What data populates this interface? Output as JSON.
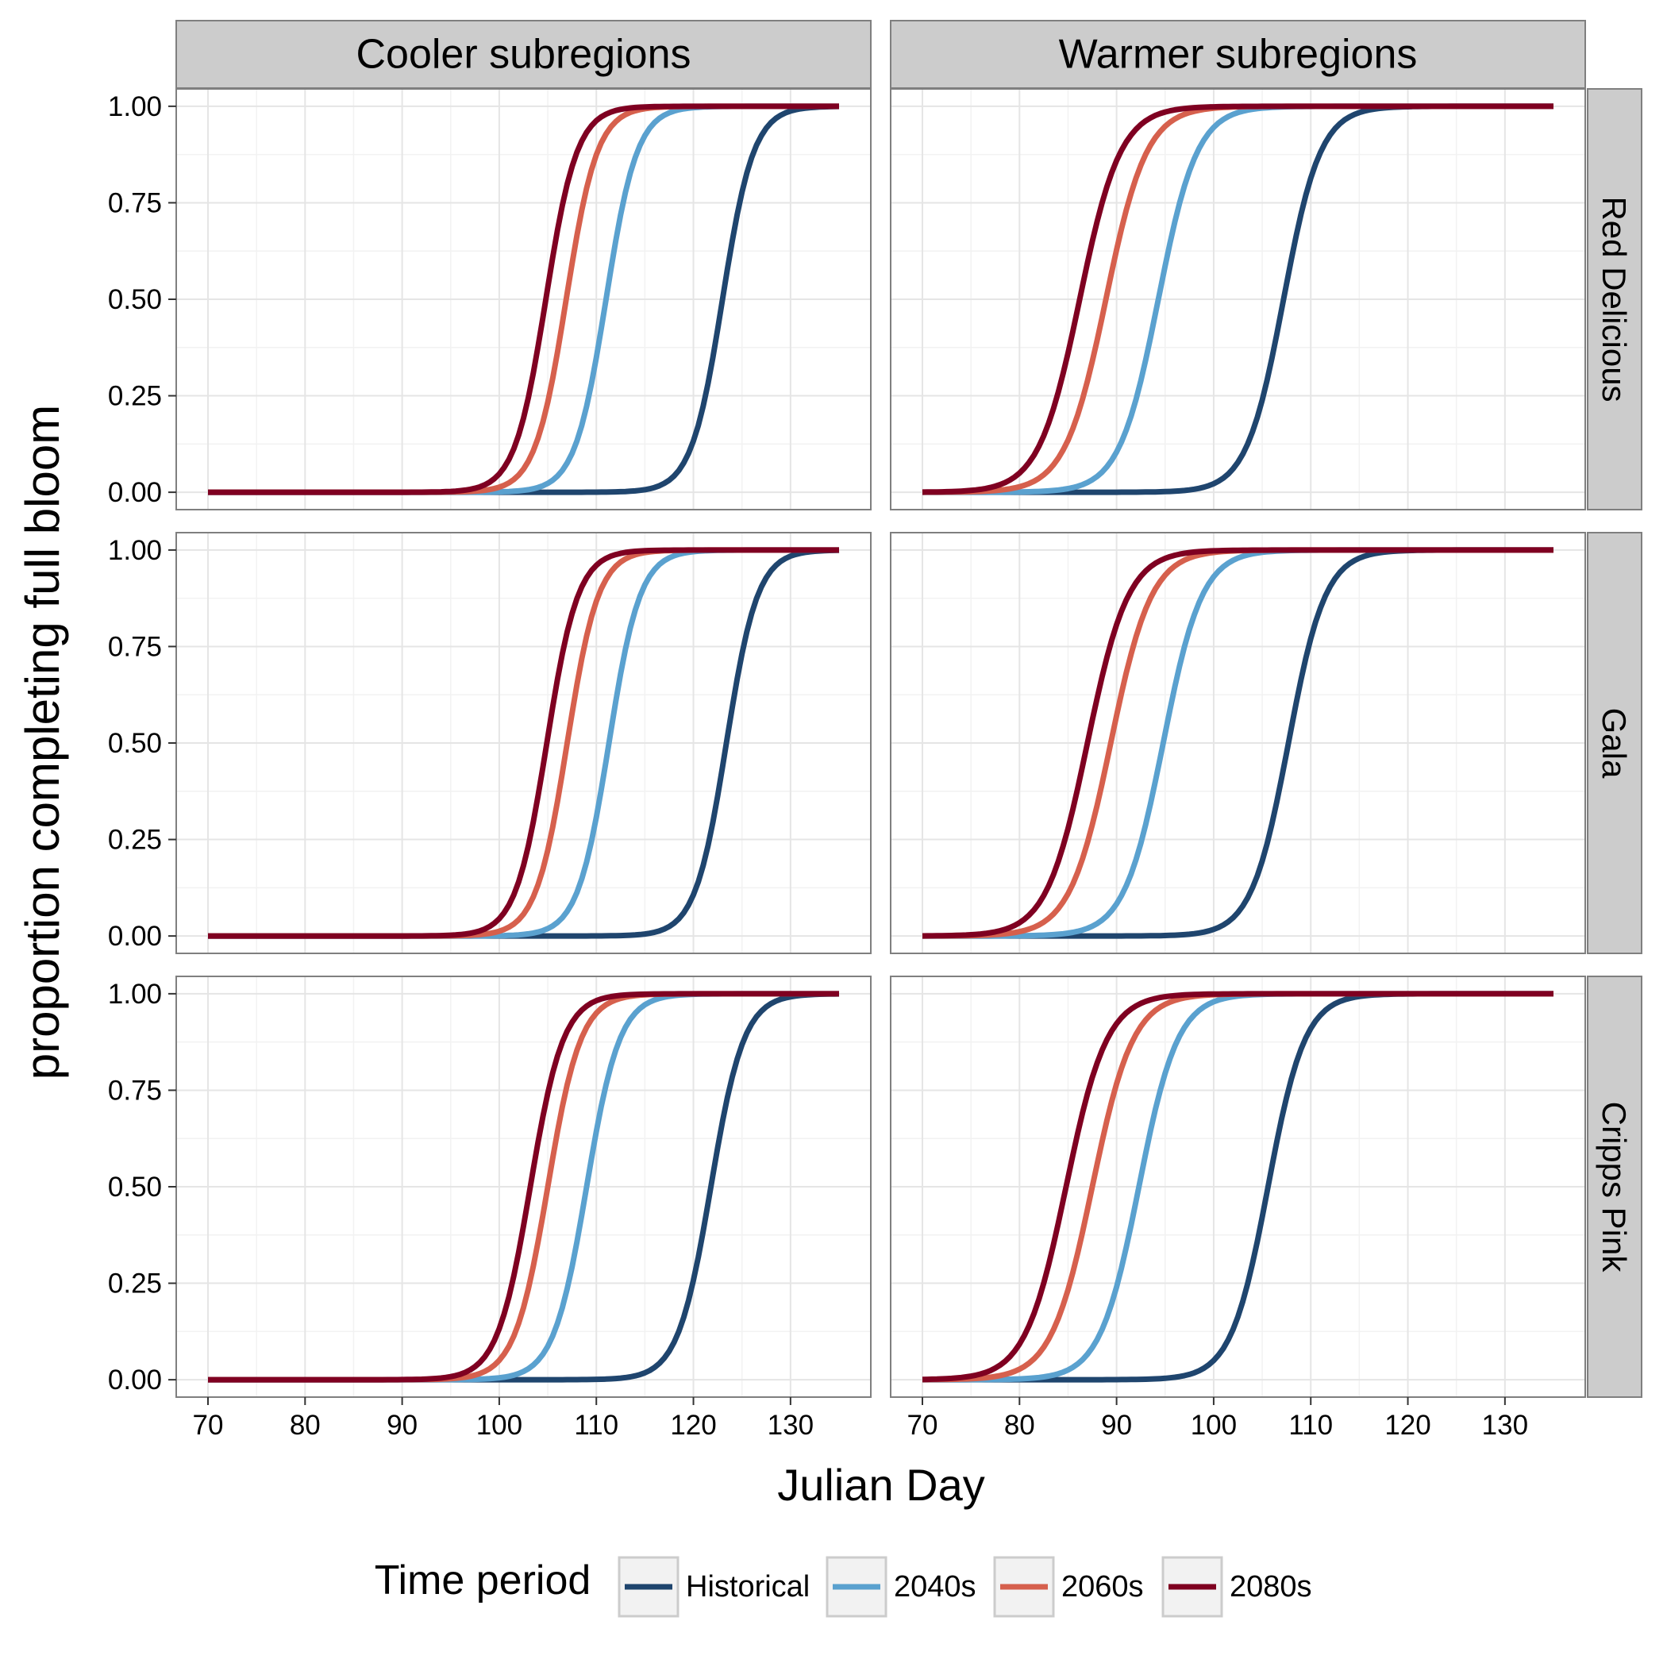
{
  "chart_data": {
    "type": "line",
    "ylabel": "proportion completing full bloom",
    "xlabel": "Julian Day",
    "col_facets": [
      "Cooler subregions",
      "Warmer subregions"
    ],
    "row_facets": [
      "Red Delicious",
      "Gala",
      "Cripps Pink"
    ],
    "xlim": [
      70,
      135
    ],
    "ylim": [
      0,
      1
    ],
    "x_ticks": [
      "70",
      "80",
      "90",
      "100",
      "110",
      "120",
      "130"
    ],
    "x_tick_values": [
      70,
      80,
      90,
      100,
      110,
      120,
      130
    ],
    "y_ticks": [
      "0.00",
      "0.25",
      "0.50",
      "0.75",
      "1.00"
    ],
    "y_tick_values": [
      0,
      0.25,
      0.5,
      0.75,
      1
    ],
    "grid": true,
    "legend": {
      "title": "Time period",
      "position": "bottom",
      "entries": [
        "Historical",
        "2040s",
        "2060s",
        "2080s"
      ]
    },
    "series_colors": {
      "Historical": "#1f456e",
      "2040s": "#5aa1cf",
      "2060s": "#d6604d",
      "2080s": "#7f0021"
    },
    "curve_model": "logistic: y = 1/(1+exp(-(x - midpoint)/scale)), x from 70 to 135",
    "panels": [
      {
        "row": "Red Delicious",
        "col": "Cooler subregions",
        "series": [
          {
            "name": "Historical",
            "midpoint": 123.0,
            "scale": 1.6
          },
          {
            "name": "2040s",
            "midpoint": 111.0,
            "scale": 1.6
          },
          {
            "name": "2060s",
            "midpoint": 106.9,
            "scale": 1.6
          },
          {
            "name": "2080s",
            "midpoint": 104.8,
            "scale": 1.6
          }
        ]
      },
      {
        "row": "Red Delicious",
        "col": "Warmer subregions",
        "series": [
          {
            "name": "Historical",
            "midpoint": 107.2,
            "scale": 1.9
          },
          {
            "name": "2040s",
            "midpoint": 94.3,
            "scale": 2.0
          },
          {
            "name": "2060s",
            "midpoint": 88.9,
            "scale": 2.1
          },
          {
            "name": "2080s",
            "midpoint": 86.2,
            "scale": 2.1
          }
        ]
      },
      {
        "row": "Gala",
        "col": "Cooler subregions",
        "series": [
          {
            "name": "Historical",
            "midpoint": 123.4,
            "scale": 1.6
          },
          {
            "name": "2040s",
            "midpoint": 111.3,
            "scale": 1.6
          },
          {
            "name": "2060s",
            "midpoint": 107.0,
            "scale": 1.6
          },
          {
            "name": "2080s",
            "midpoint": 104.9,
            "scale": 1.6
          }
        ]
      },
      {
        "row": "Gala",
        "col": "Warmer subregions",
        "series": [
          {
            "name": "Historical",
            "midpoint": 107.7,
            "scale": 1.9
          },
          {
            "name": "2040s",
            "midpoint": 94.8,
            "scale": 2.0
          },
          {
            "name": "2060s",
            "midpoint": 89.4,
            "scale": 2.1
          },
          {
            "name": "2080s",
            "midpoint": 87.0,
            "scale": 2.1
          }
        ]
      },
      {
        "row": "Cripps Pink",
        "col": "Cooler subregions",
        "series": [
          {
            "name": "Historical",
            "midpoint": 121.8,
            "scale": 1.7
          },
          {
            "name": "2040s",
            "midpoint": 109.0,
            "scale": 1.7
          },
          {
            "name": "2060s",
            "midpoint": 105.0,
            "scale": 1.7
          },
          {
            "name": "2080s",
            "midpoint": 103.2,
            "scale": 1.7
          }
        ]
      },
      {
        "row": "Cripps Pink",
        "col": "Warmer subregions",
        "series": [
          {
            "name": "Historical",
            "midpoint": 105.6,
            "scale": 1.9
          },
          {
            "name": "2040s",
            "midpoint": 92.3,
            "scale": 2.0
          },
          {
            "name": "2060s",
            "midpoint": 87.5,
            "scale": 2.1
          },
          {
            "name": "2080s",
            "midpoint": 84.8,
            "scale": 2.1
          }
        ]
      }
    ]
  }
}
